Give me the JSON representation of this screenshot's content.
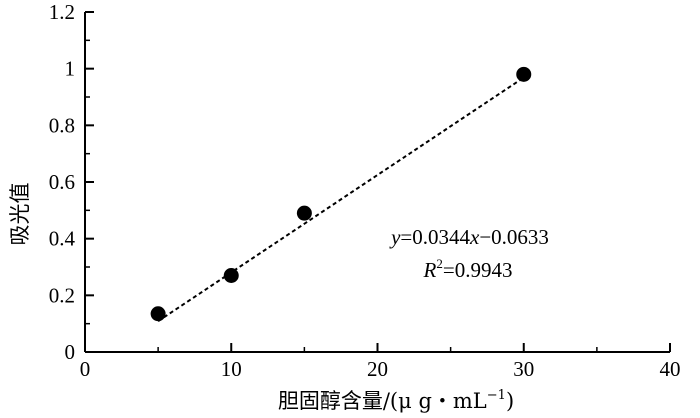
{
  "chart_data": {
    "type": "scatter",
    "xlabel": "胆固醇含量/(μ g・mL⁻¹)",
    "xlabel_main": "胆固醇含量/(μ g・mL",
    "xlabel_sup": "−1",
    "xlabel_close": ")",
    "ylabel": "吸光值",
    "xlim": [
      0,
      40
    ],
    "ylim": [
      0,
      1.2
    ],
    "xticks": [
      0,
      10,
      20,
      30,
      40
    ],
    "yticks": [
      0,
      0.2,
      0.4,
      0.6,
      0.8,
      1,
      1.2
    ],
    "xtick_labels": [
      "0",
      "10",
      "20",
      "30",
      "40"
    ],
    "ytick_labels": [
      "0",
      "0.2",
      "0.4",
      "0.6",
      "0.8",
      "1",
      "1.2"
    ],
    "grid": false,
    "points": [
      {
        "x": 5,
        "y": 0.135
      },
      {
        "x": 10,
        "y": 0.27
      },
      {
        "x": 15,
        "y": 0.49
      },
      {
        "x": 30,
        "y": 0.98
      }
    ],
    "trendline": {
      "style": "dashed",
      "x_range": [
        5,
        30
      ],
      "slope": 0.0344,
      "intercept": -0.0633
    },
    "annotation": {
      "equation": "y=0.0344x−0.0633",
      "eq_y": "y",
      "eq_mid": "=0.0344",
      "eq_x": "x",
      "eq_tail": "−0.0633",
      "r2": "R2=0.9943",
      "r2_R": "R",
      "r2_sup": "2",
      "r2_val": "=0.9943"
    },
    "colors": {
      "marker": "#000000",
      "line": "#000000",
      "axis": "#000000"
    }
  }
}
